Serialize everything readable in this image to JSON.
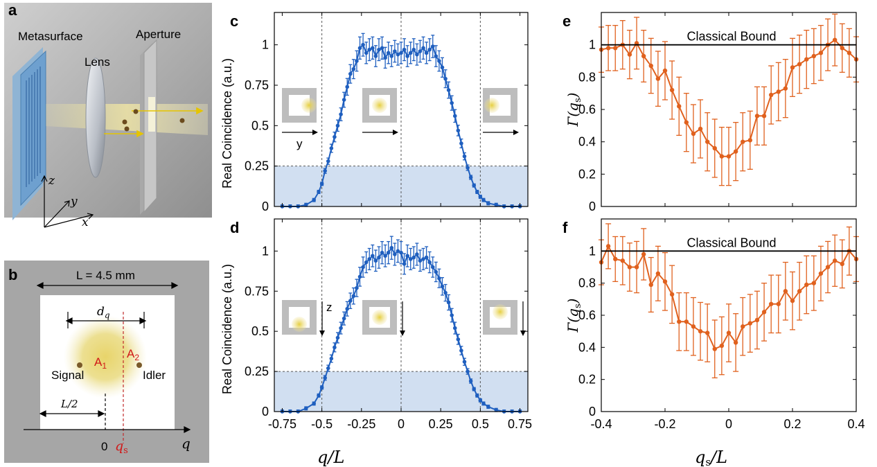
{
  "panel_letters": [
    "a",
    "b",
    "c",
    "d",
    "e",
    "f"
  ],
  "panel_a": {
    "labels": {
      "metasurface": "Metasurface",
      "lens": "Lens",
      "aperture": "Aperture"
    },
    "axes": {
      "x": "x",
      "y": "y",
      "z": "z"
    }
  },
  "panel_b": {
    "width_label": "L = 4.5 mm",
    "dq_label": "d",
    "dq_sub": "q",
    "half_label": "L/2",
    "a1": "A",
    "a1_sub": "1",
    "a2": "A",
    "a2_sub": "2",
    "signal": "Signal",
    "idler": "Idler",
    "zero": "0",
    "qs": "q",
    "qs_sub": "s",
    "q_axis": "q"
  },
  "coincidence": {
    "ylabel": "Real Coincidence (a.u.)",
    "xlabel_c": "q/L",
    "inset_y": "y",
    "inset_z": "z"
  },
  "gamma": {
    "ylabel": "Γ(q",
    "ylabel_sub": "s",
    "ylabel_end": ")",
    "xlabel": "q",
    "xlabel_sub": "s",
    "xlabel_end": "/L",
    "bound_label": "Classical Bound"
  },
  "colors": {
    "blue": "#1f5fbf",
    "orange": "#e0611e",
    "shade": "#c9d9ef"
  },
  "chart_data": [
    {
      "panel": "c",
      "type": "line",
      "xlabel": "q/L",
      "ylabel": "Real Coincidence (a.u.)",
      "xlim": [
        -0.8,
        0.8
      ],
      "ylim": [
        0,
        1.2
      ],
      "xticks": [
        "-0.75",
        "-0.5",
        "-0.25",
        "0",
        "0.25",
        "0.5",
        "0.75"
      ],
      "yticks": [
        "0",
        "0.25",
        "0.5",
        "0.75",
        "1"
      ],
      "threshold": 0.25,
      "vlines": [
        -0.5,
        0,
        0.5
      ],
      "x": [
        -0.75,
        -0.7,
        -0.65,
        -0.6,
        -0.55,
        -0.52,
        -0.5,
        -0.48,
        -0.46,
        -0.44,
        -0.42,
        -0.4,
        -0.38,
        -0.36,
        -0.34,
        -0.32,
        -0.3,
        -0.28,
        -0.26,
        -0.24,
        -0.22,
        -0.2,
        -0.18,
        -0.16,
        -0.14,
        -0.12,
        -0.1,
        -0.08,
        -0.06,
        -0.04,
        -0.02,
        0,
        0.02,
        0.04,
        0.06,
        0.08,
        0.1,
        0.12,
        0.14,
        0.16,
        0.18,
        0.2,
        0.22,
        0.24,
        0.26,
        0.28,
        0.3,
        0.32,
        0.34,
        0.36,
        0.38,
        0.4,
        0.42,
        0.44,
        0.46,
        0.48,
        0.5,
        0.52,
        0.55,
        0.6,
        0.65,
        0.7,
        0.75
      ],
      "y": [
        0,
        0,
        0,
        0.01,
        0.04,
        0.09,
        0.14,
        0.22,
        0.28,
        0.36,
        0.43,
        0.5,
        0.57,
        0.66,
        0.74,
        0.82,
        0.85,
        0.9,
        0.98,
        1.0,
        0.95,
        0.97,
        0.98,
        0.93,
        0.97,
        0.98,
        0.92,
        0.95,
        0.93,
        0.96,
        0.94,
        0.95,
        0.97,
        0.93,
        0.95,
        0.97,
        0.94,
        0.96,
        0.98,
        0.95,
        0.97,
        0.99,
        0.93,
        0.9,
        0.86,
        0.79,
        0.72,
        0.64,
        0.56,
        0.47,
        0.39,
        0.31,
        0.24,
        0.18,
        0.13,
        0.09,
        0.06,
        0.04,
        0.02,
        0.01,
        0,
        0,
        0
      ]
    },
    {
      "panel": "d",
      "type": "line",
      "xlabel": "q/L",
      "ylabel": "Real Coincidence (a.u.)",
      "xlim": [
        -0.8,
        0.8
      ],
      "ylim": [
        0,
        1.2
      ],
      "xticks": [
        "-0.75",
        "-0.5",
        "-0.25",
        "0",
        "0.25",
        "0.5",
        "0.75"
      ],
      "yticks": [
        "0",
        "0.25",
        "0.5",
        "0.75",
        "1"
      ],
      "threshold": 0.25,
      "vlines": [
        -0.5,
        0,
        0.5
      ],
      "x": [
        -0.75,
        -0.7,
        -0.65,
        -0.6,
        -0.55,
        -0.52,
        -0.5,
        -0.48,
        -0.46,
        -0.44,
        -0.42,
        -0.4,
        -0.38,
        -0.36,
        -0.34,
        -0.32,
        -0.3,
        -0.28,
        -0.26,
        -0.24,
        -0.22,
        -0.2,
        -0.18,
        -0.16,
        -0.14,
        -0.12,
        -0.1,
        -0.08,
        -0.06,
        -0.04,
        -0.02,
        0,
        0.02,
        0.04,
        0.06,
        0.08,
        0.1,
        0.12,
        0.14,
        0.16,
        0.18,
        0.2,
        0.22,
        0.24,
        0.26,
        0.28,
        0.3,
        0.32,
        0.34,
        0.36,
        0.38,
        0.4,
        0.42,
        0.44,
        0.46,
        0.48,
        0.5,
        0.52,
        0.55,
        0.6,
        0.65,
        0.7,
        0.75
      ],
      "y": [
        0,
        0,
        0,
        0.02,
        0.05,
        0.1,
        0.15,
        0.21,
        0.27,
        0.33,
        0.4,
        0.46,
        0.52,
        0.58,
        0.64,
        0.69,
        0.72,
        0.77,
        0.84,
        0.9,
        0.93,
        0.95,
        0.97,
        0.94,
        0.96,
        0.99,
        0.97,
        0.99,
        1.02,
        0.98,
        1.0,
        0.99,
        0.92,
        0.97,
        0.95,
        0.96,
        0.98,
        0.94,
        0.95,
        0.96,
        0.93,
        0.9,
        0.87,
        0.83,
        0.78,
        0.74,
        0.68,
        0.6,
        0.52,
        0.45,
        0.38,
        0.31,
        0.25,
        0.19,
        0.14,
        0.1,
        0.07,
        0.05,
        0.03,
        0.01,
        0,
        0,
        0
      ]
    },
    {
      "panel": "e",
      "type": "line",
      "xlabel": "qs/L",
      "ylabel": "Γ(qs)",
      "xlim": [
        -0.4,
        0.4
      ],
      "ylim": [
        0,
        1.2
      ],
      "xticks": [
        "-0.4",
        "-0.2",
        "0",
        "0.2",
        "0.4"
      ],
      "yticks": [
        "0",
        "0.2",
        "0.4",
        "0.6",
        "0.8",
        "1"
      ],
      "bound": 1.0,
      "x": [
        -0.4,
        -0.378,
        -0.356,
        -0.333,
        -0.311,
        -0.289,
        -0.267,
        -0.244,
        -0.222,
        -0.2,
        -0.178,
        -0.156,
        -0.133,
        -0.111,
        -0.089,
        -0.067,
        -0.044,
        -0.022,
        0,
        0.022,
        0.044,
        0.067,
        0.089,
        0.111,
        0.133,
        0.156,
        0.178,
        0.2,
        0.222,
        0.244,
        0.267,
        0.289,
        0.311,
        0.333,
        0.356,
        0.378,
        0.4
      ],
      "y": [
        0.97,
        0.98,
        0.98,
        1.0,
        0.94,
        1.01,
        0.93,
        0.87,
        0.79,
        0.84,
        0.72,
        0.62,
        0.52,
        0.45,
        0.48,
        0.4,
        0.36,
        0.31,
        0.31,
        0.34,
        0.4,
        0.41,
        0.56,
        0.56,
        0.69,
        0.71,
        0.73,
        0.86,
        0.88,
        0.91,
        0.93,
        0.95,
        1.0,
        1.03,
        0.98,
        0.95,
        0.91
      ],
      "err": [
        0.14,
        0.14,
        0.14,
        0.15,
        0.15,
        0.16,
        0.16,
        0.17,
        0.17,
        0.18,
        0.18,
        0.18,
        0.18,
        0.18,
        0.18,
        0.18,
        0.18,
        0.18,
        0.18,
        0.18,
        0.18,
        0.18,
        0.18,
        0.18,
        0.18,
        0.18,
        0.18,
        0.18,
        0.18,
        0.18,
        0.17,
        0.17,
        0.16,
        0.16,
        0.15,
        0.15,
        0.14
      ]
    },
    {
      "panel": "f",
      "type": "line",
      "xlabel": "qs/L",
      "ylabel": "Γ(qs)",
      "xlim": [
        -0.4,
        0.4
      ],
      "ylim": [
        0,
        1.2
      ],
      "xticks": [
        "-0.4",
        "-0.2",
        "0",
        "0.2",
        "0.4"
      ],
      "yticks": [
        "0",
        "0.2",
        "0.4",
        "0.6",
        "0.8",
        "1"
      ],
      "bound": 1.0,
      "x": [
        -0.4,
        -0.378,
        -0.356,
        -0.333,
        -0.311,
        -0.289,
        -0.267,
        -0.244,
        -0.222,
        -0.2,
        -0.178,
        -0.156,
        -0.133,
        -0.111,
        -0.089,
        -0.067,
        -0.044,
        -0.022,
        0,
        0.022,
        0.044,
        0.067,
        0.089,
        0.111,
        0.133,
        0.156,
        0.178,
        0.2,
        0.222,
        0.244,
        0.267,
        0.289,
        0.311,
        0.333,
        0.356,
        0.378,
        0.4
      ],
      "y": [
        0.93,
        1.03,
        0.95,
        0.94,
        0.9,
        0.9,
        0.98,
        0.79,
        0.86,
        0.81,
        0.73,
        0.56,
        0.56,
        0.53,
        0.5,
        0.49,
        0.39,
        0.41,
        0.49,
        0.43,
        0.53,
        0.55,
        0.57,
        0.62,
        0.67,
        0.67,
        0.75,
        0.69,
        0.75,
        0.79,
        0.8,
        0.86,
        0.9,
        0.94,
        0.92,
        1.0,
        0.95
      ],
      "err": [
        0.14,
        0.14,
        0.14,
        0.15,
        0.15,
        0.16,
        0.16,
        0.17,
        0.17,
        0.18,
        0.18,
        0.18,
        0.18,
        0.18,
        0.18,
        0.18,
        0.18,
        0.18,
        0.18,
        0.18,
        0.18,
        0.18,
        0.18,
        0.18,
        0.18,
        0.18,
        0.18,
        0.18,
        0.18,
        0.18,
        0.17,
        0.17,
        0.16,
        0.16,
        0.15,
        0.15,
        0.14
      ]
    }
  ]
}
